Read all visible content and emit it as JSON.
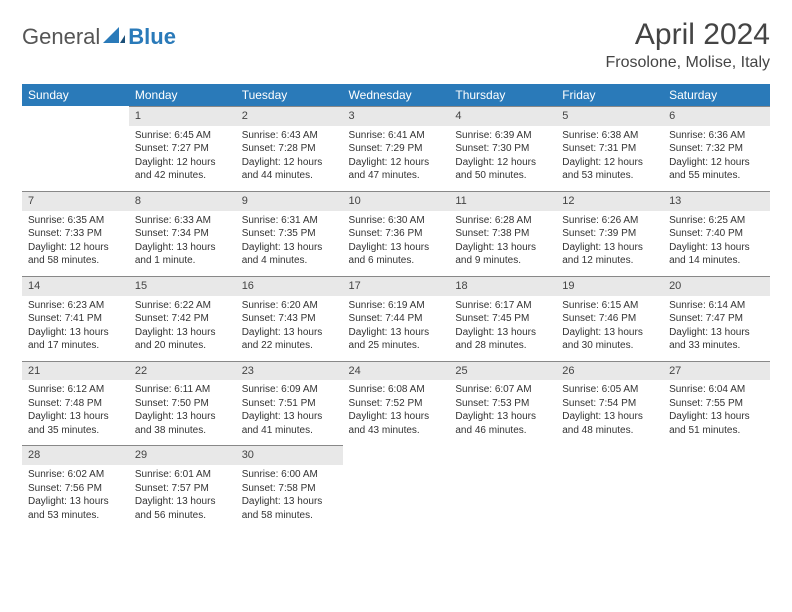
{
  "logo": {
    "text1": "General",
    "text2": "Blue"
  },
  "title": "April 2024",
  "location": "Frosolone, Molise, Italy",
  "colors": {
    "header_bg": "#2a7ab9",
    "header_text": "#ffffff",
    "daynum_bg": "#e8e8e8",
    "cell_border": "#888888",
    "body_text": "#333333"
  },
  "typography": {
    "title_fontsize": 30,
    "location_fontsize": 16,
    "dayheader_fontsize": 12,
    "cell_fontsize": 10
  },
  "day_headers": [
    "Sunday",
    "Monday",
    "Tuesday",
    "Wednesday",
    "Thursday",
    "Friday",
    "Saturday"
  ],
  "weeks": [
    [
      null,
      {
        "n": "1",
        "sr": "Sunrise: 6:45 AM",
        "ss": "Sunset: 7:27 PM",
        "d1": "Daylight: 12 hours",
        "d2": "and 42 minutes."
      },
      {
        "n": "2",
        "sr": "Sunrise: 6:43 AM",
        "ss": "Sunset: 7:28 PM",
        "d1": "Daylight: 12 hours",
        "d2": "and 44 minutes."
      },
      {
        "n": "3",
        "sr": "Sunrise: 6:41 AM",
        "ss": "Sunset: 7:29 PM",
        "d1": "Daylight: 12 hours",
        "d2": "and 47 minutes."
      },
      {
        "n": "4",
        "sr": "Sunrise: 6:39 AM",
        "ss": "Sunset: 7:30 PM",
        "d1": "Daylight: 12 hours",
        "d2": "and 50 minutes."
      },
      {
        "n": "5",
        "sr": "Sunrise: 6:38 AM",
        "ss": "Sunset: 7:31 PM",
        "d1": "Daylight: 12 hours",
        "d2": "and 53 minutes."
      },
      {
        "n": "6",
        "sr": "Sunrise: 6:36 AM",
        "ss": "Sunset: 7:32 PM",
        "d1": "Daylight: 12 hours",
        "d2": "and 55 minutes."
      }
    ],
    [
      {
        "n": "7",
        "sr": "Sunrise: 6:35 AM",
        "ss": "Sunset: 7:33 PM",
        "d1": "Daylight: 12 hours",
        "d2": "and 58 minutes."
      },
      {
        "n": "8",
        "sr": "Sunrise: 6:33 AM",
        "ss": "Sunset: 7:34 PM",
        "d1": "Daylight: 13 hours",
        "d2": "and 1 minute."
      },
      {
        "n": "9",
        "sr": "Sunrise: 6:31 AM",
        "ss": "Sunset: 7:35 PM",
        "d1": "Daylight: 13 hours",
        "d2": "and 4 minutes."
      },
      {
        "n": "10",
        "sr": "Sunrise: 6:30 AM",
        "ss": "Sunset: 7:36 PM",
        "d1": "Daylight: 13 hours",
        "d2": "and 6 minutes."
      },
      {
        "n": "11",
        "sr": "Sunrise: 6:28 AM",
        "ss": "Sunset: 7:38 PM",
        "d1": "Daylight: 13 hours",
        "d2": "and 9 minutes."
      },
      {
        "n": "12",
        "sr": "Sunrise: 6:26 AM",
        "ss": "Sunset: 7:39 PM",
        "d1": "Daylight: 13 hours",
        "d2": "and 12 minutes."
      },
      {
        "n": "13",
        "sr": "Sunrise: 6:25 AM",
        "ss": "Sunset: 7:40 PM",
        "d1": "Daylight: 13 hours",
        "d2": "and 14 minutes."
      }
    ],
    [
      {
        "n": "14",
        "sr": "Sunrise: 6:23 AM",
        "ss": "Sunset: 7:41 PM",
        "d1": "Daylight: 13 hours",
        "d2": "and 17 minutes."
      },
      {
        "n": "15",
        "sr": "Sunrise: 6:22 AM",
        "ss": "Sunset: 7:42 PM",
        "d1": "Daylight: 13 hours",
        "d2": "and 20 minutes."
      },
      {
        "n": "16",
        "sr": "Sunrise: 6:20 AM",
        "ss": "Sunset: 7:43 PM",
        "d1": "Daylight: 13 hours",
        "d2": "and 22 minutes."
      },
      {
        "n": "17",
        "sr": "Sunrise: 6:19 AM",
        "ss": "Sunset: 7:44 PM",
        "d1": "Daylight: 13 hours",
        "d2": "and 25 minutes."
      },
      {
        "n": "18",
        "sr": "Sunrise: 6:17 AM",
        "ss": "Sunset: 7:45 PM",
        "d1": "Daylight: 13 hours",
        "d2": "and 28 minutes."
      },
      {
        "n": "19",
        "sr": "Sunrise: 6:15 AM",
        "ss": "Sunset: 7:46 PM",
        "d1": "Daylight: 13 hours",
        "d2": "and 30 minutes."
      },
      {
        "n": "20",
        "sr": "Sunrise: 6:14 AM",
        "ss": "Sunset: 7:47 PM",
        "d1": "Daylight: 13 hours",
        "d2": "and 33 minutes."
      }
    ],
    [
      {
        "n": "21",
        "sr": "Sunrise: 6:12 AM",
        "ss": "Sunset: 7:48 PM",
        "d1": "Daylight: 13 hours",
        "d2": "and 35 minutes."
      },
      {
        "n": "22",
        "sr": "Sunrise: 6:11 AM",
        "ss": "Sunset: 7:50 PM",
        "d1": "Daylight: 13 hours",
        "d2": "and 38 minutes."
      },
      {
        "n": "23",
        "sr": "Sunrise: 6:09 AM",
        "ss": "Sunset: 7:51 PM",
        "d1": "Daylight: 13 hours",
        "d2": "and 41 minutes."
      },
      {
        "n": "24",
        "sr": "Sunrise: 6:08 AM",
        "ss": "Sunset: 7:52 PM",
        "d1": "Daylight: 13 hours",
        "d2": "and 43 minutes."
      },
      {
        "n": "25",
        "sr": "Sunrise: 6:07 AM",
        "ss": "Sunset: 7:53 PM",
        "d1": "Daylight: 13 hours",
        "d2": "and 46 minutes."
      },
      {
        "n": "26",
        "sr": "Sunrise: 6:05 AM",
        "ss": "Sunset: 7:54 PM",
        "d1": "Daylight: 13 hours",
        "d2": "and 48 minutes."
      },
      {
        "n": "27",
        "sr": "Sunrise: 6:04 AM",
        "ss": "Sunset: 7:55 PM",
        "d1": "Daylight: 13 hours",
        "d2": "and 51 minutes."
      }
    ],
    [
      {
        "n": "28",
        "sr": "Sunrise: 6:02 AM",
        "ss": "Sunset: 7:56 PM",
        "d1": "Daylight: 13 hours",
        "d2": "and 53 minutes."
      },
      {
        "n": "29",
        "sr": "Sunrise: 6:01 AM",
        "ss": "Sunset: 7:57 PM",
        "d1": "Daylight: 13 hours",
        "d2": "and 56 minutes."
      },
      {
        "n": "30",
        "sr": "Sunrise: 6:00 AM",
        "ss": "Sunset: 7:58 PM",
        "d1": "Daylight: 13 hours",
        "d2": "and 58 minutes."
      },
      null,
      null,
      null,
      null
    ]
  ]
}
